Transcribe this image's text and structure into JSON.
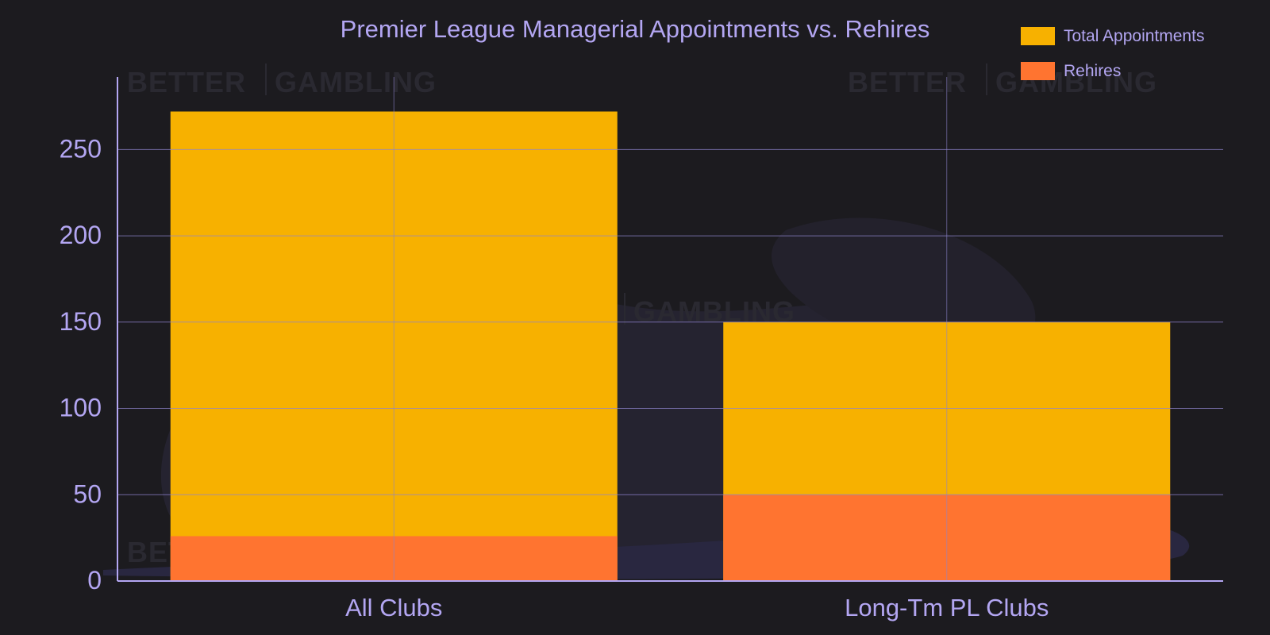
{
  "chart_data": {
    "type": "bar",
    "stacking": "overlay",
    "title": "Premier League Managerial Appointments vs. Rehires",
    "xlabel": "",
    "ylabel": "",
    "categories": [
      "All Clubs",
      "Long-Tm PL Clubs"
    ],
    "series": [
      {
        "name": "Total Appointments",
        "values": [
          272,
          150
        ],
        "color": "#f7b100"
      },
      {
        "name": "Rehires",
        "values": [
          26,
          50
        ],
        "color": "#ff7430"
      }
    ],
    "ylim": [
      0,
      292
    ],
    "yticks": [
      0,
      50,
      100,
      150,
      200,
      250
    ],
    "grid": true,
    "legend_position": "top-right",
    "colors": {
      "background": "#1c1b1f",
      "text": "#b3a6f2",
      "axis": "#b3a6f2",
      "grid": "#8e84cc"
    }
  },
  "watermark": {
    "text_left": "BETTER",
    "text_right": "GAMBLING"
  }
}
